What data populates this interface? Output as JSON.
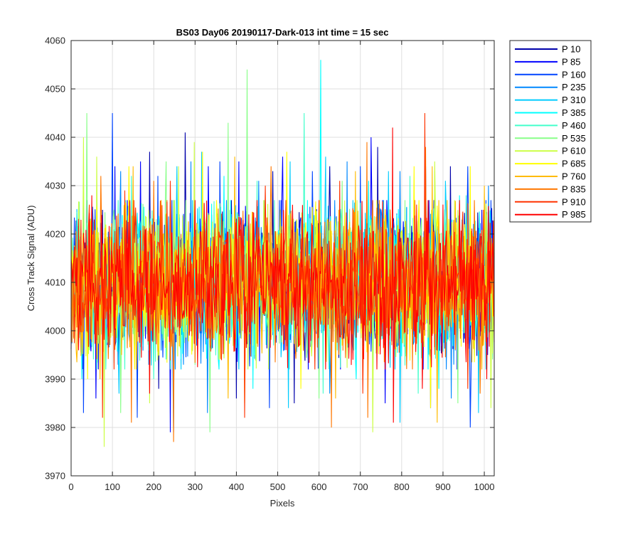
{
  "chart_data": {
    "type": "line",
    "title": "BS03 Day06 20190117-Dark-013 int time = 15 sec",
    "xlabel": "Pixels",
    "ylabel": "Cross Track Signal (ADU)",
    "xlim": [
      0,
      1024
    ],
    "ylim": [
      3970,
      4060
    ],
    "xticks": [
      0,
      100,
      200,
      300,
      400,
      500,
      600,
      700,
      800,
      900,
      1000
    ],
    "yticks": [
      3970,
      3980,
      3990,
      4000,
      4010,
      4020,
      4030,
      4040,
      4050,
      4060
    ],
    "grid": true,
    "legend_position": "outside-top-right",
    "series": [
      {
        "name": "P 10",
        "color": "#0000aa",
        "spikes": [
          [
            190,
            4037
          ],
          [
            275,
            4041
          ],
          [
            487,
            4033
          ],
          [
            625,
            4034
          ],
          [
            741,
            4038
          ],
          [
            918,
            4034
          ],
          [
            212,
            3988
          ],
          [
            400,
            3986
          ],
          [
            540,
            3985
          ],
          [
            870,
            3984
          ]
        ]
      },
      {
        "name": "P 85",
        "color": "#0000ff",
        "spikes": [
          [
            105,
            4034
          ],
          [
            168,
            4035
          ],
          [
            332,
            4034
          ],
          [
            405,
            4035
          ],
          [
            512,
            4036
          ],
          [
            725,
            4040
          ],
          [
            858,
            4034
          ],
          [
            60,
            3986
          ],
          [
            240,
            3979
          ],
          [
            760,
            3985
          ]
        ]
      },
      {
        "name": "P 160",
        "color": "#0044ff",
        "spikes": [
          [
            100,
            4045
          ],
          [
            210,
            4032
          ],
          [
            360,
            4035
          ],
          [
            583,
            4033
          ],
          [
            700,
            4034
          ],
          [
            960,
            4034
          ],
          [
            30,
            3983
          ],
          [
            160,
            3982
          ],
          [
            480,
            3984
          ],
          [
            965,
            3980
          ]
        ]
      },
      {
        "name": "P 235",
        "color": "#0088ff",
        "spikes": [
          [
            120,
            4033
          ],
          [
            289,
            4035
          ],
          [
            454,
            4031
          ],
          [
            668,
            4035
          ],
          [
            795,
            4033
          ],
          [
            1010,
            4030
          ],
          [
            248,
            3979
          ],
          [
            330,
            3983
          ],
          [
            625,
            3987
          ],
          [
            920,
            3986
          ]
        ]
      },
      {
        "name": "P 310",
        "color": "#00ccff",
        "spikes": [
          [
            255,
            4034
          ],
          [
            315,
            4037
          ],
          [
            530,
            4035
          ],
          [
            615,
            4036
          ],
          [
            768,
            4033
          ],
          [
            905,
            4031
          ],
          [
            115,
            3987
          ],
          [
            525,
            3984
          ],
          [
            795,
            3981
          ],
          [
            985,
            3983
          ]
        ]
      },
      {
        "name": "P 385",
        "color": "#00ffff",
        "spikes": [
          [
            603,
            4056
          ],
          [
            370,
            4032
          ],
          [
            720,
            4031
          ],
          [
            940,
            4028
          ],
          [
            440,
            3988
          ],
          [
            690,
            3990
          ],
          [
            890,
            3988
          ],
          [
            25,
            3990
          ]
        ]
      },
      {
        "name": "P 460",
        "color": "#44ffcc",
        "spikes": [
          [
            563,
            4045
          ],
          [
            145,
            4032
          ],
          [
            450,
            4031
          ],
          [
            820,
            4032
          ],
          [
            955,
            4028
          ],
          [
            200,
            3990
          ],
          [
            610,
            3987
          ],
          [
            840,
            3987
          ]
        ]
      },
      {
        "name": "P 535",
        "color": "#88ff88",
        "spikes": [
          [
            38,
            4045
          ],
          [
            380,
            4043
          ],
          [
            425,
            4054
          ],
          [
            230,
            4035
          ],
          [
            655,
            4031
          ],
          [
            880,
            4033
          ],
          [
            120,
            3983
          ],
          [
            335,
            3979
          ],
          [
            600,
            3986
          ],
          [
            935,
            3985
          ]
        ]
      },
      {
        "name": "P 610",
        "color": "#ccff44",
        "spikes": [
          [
            30,
            4040
          ],
          [
            297,
            4039
          ],
          [
            62,
            4036
          ],
          [
            260,
            4034
          ],
          [
            880,
            4035
          ],
          [
            80,
            3976
          ],
          [
            190,
            3985
          ],
          [
            730,
            3979
          ],
          [
            1015,
            3984
          ]
        ]
      },
      {
        "name": "P 685",
        "color": "#ffff00",
        "spikes": [
          [
            140,
            4034
          ],
          [
            317,
            4037
          ],
          [
            522,
            4037
          ],
          [
            830,
            4034
          ],
          [
            965,
            4034
          ],
          [
            40,
            3990
          ],
          [
            420,
            3985
          ],
          [
            555,
            3988
          ],
          [
            870,
            3984
          ]
        ]
      },
      {
        "name": "P 760",
        "color": "#ffbb00",
        "spikes": [
          [
            150,
            4034
          ],
          [
            395,
            4036
          ],
          [
            688,
            4033
          ],
          [
            874,
            4034
          ],
          [
            1000,
            4030
          ],
          [
            70,
            3990
          ],
          [
            380,
            3986
          ],
          [
            640,
            3986
          ],
          [
            885,
            3981
          ]
        ]
      },
      {
        "name": "P 835",
        "color": "#ff7700",
        "spikes": [
          [
            72,
            4032
          ],
          [
            200,
            4031
          ],
          [
            484,
            4034
          ],
          [
            715,
            4039
          ],
          [
            858,
            4038
          ],
          [
            145,
            3981
          ],
          [
            248,
            3977
          ],
          [
            630,
            3980
          ],
          [
            718,
            3982
          ],
          [
            990,
            3987
          ]
        ]
      },
      {
        "name": "P 910",
        "color": "#ff3300",
        "spikes": [
          [
            855,
            4045
          ],
          [
            130,
            4029
          ],
          [
            240,
            4031
          ],
          [
            470,
            4030
          ],
          [
            650,
            4031
          ],
          [
            75,
            3982
          ],
          [
            420,
            3982
          ],
          [
            705,
            3987
          ],
          [
            960,
            3988
          ]
        ]
      },
      {
        "name": "P 985",
        "color": "#ff0000",
        "spikes": [
          [
            778,
            4042
          ],
          [
            50,
            4028
          ],
          [
            300,
            4027
          ],
          [
            560,
            4026
          ],
          [
            940,
            4027
          ],
          [
            190,
            3987
          ],
          [
            780,
            3981
          ],
          [
            850,
            3988
          ],
          [
            1005,
            3990
          ]
        ]
      }
    ]
  }
}
